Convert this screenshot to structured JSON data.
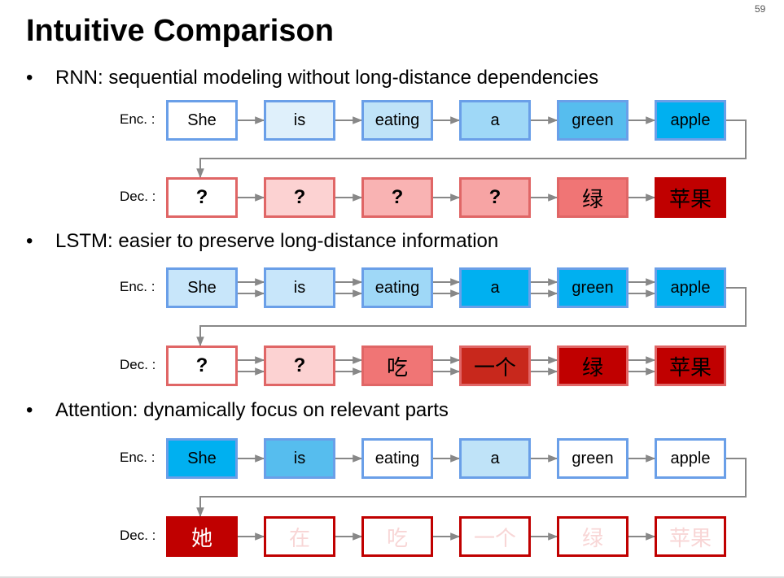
{
  "slide": {
    "page_number": "59",
    "title": "Intuitive Comparison"
  },
  "sections": [
    {
      "id": "rnn",
      "bullet": "RNN: sequential modeling without long-distance dependencies",
      "enc_label": "Enc. :",
      "dec_label": "Dec. :",
      "enc": [
        {
          "text": "She",
          "fill": "#ffffff",
          "border": "#6a9fe8"
        },
        {
          "text": "is",
          "fill": "#dff0fb",
          "border": "#6a9fe8"
        },
        {
          "text": "eating",
          "fill": "#bfe3f8",
          "border": "#6a9fe8"
        },
        {
          "text": "a",
          "fill": "#9fd8f7",
          "border": "#6a9fe8"
        },
        {
          "text": "green",
          "fill": "#56bdee",
          "border": "#6a9fe8"
        },
        {
          "text": "apple",
          "fill": "#00b0f0",
          "border": "#6a9fe8"
        }
      ],
      "dec": [
        {
          "text": "?",
          "fill": "#ffffff",
          "border": "#e06666",
          "color": "#000000",
          "kind": "q"
        },
        {
          "text": "?",
          "fill": "#fcd2d2",
          "border": "#e06666",
          "color": "#000000",
          "kind": "q"
        },
        {
          "text": "?",
          "fill": "#f9b3b3",
          "border": "#e06666",
          "color": "#000000",
          "kind": "q"
        },
        {
          "text": "?",
          "fill": "#f7a4a4",
          "border": "#e06666",
          "color": "#000000",
          "kind": "q"
        },
        {
          "text": "绿",
          "fill": "#f07575",
          "border": "#e06666",
          "color": "#000000",
          "kind": "zh"
        },
        {
          "text": "苹果",
          "fill": "#c00000",
          "border": "#c00000",
          "color": "#000000",
          "kind": "zh"
        }
      ]
    },
    {
      "id": "lstm",
      "bullet": "LSTM: easier to preserve long-distance information",
      "enc_label": "Enc. :",
      "dec_label": "Dec. :",
      "enc": [
        {
          "text": "She",
          "fill": "#c8e6fa",
          "border": "#6a9fe8"
        },
        {
          "text": "is",
          "fill": "#c8e6fa",
          "border": "#6a9fe8"
        },
        {
          "text": "eating",
          "fill": "#9fd8f7",
          "border": "#6a9fe8"
        },
        {
          "text": "a",
          "fill": "#00b0f0",
          "border": "#6a9fe8"
        },
        {
          "text": "green",
          "fill": "#00b0f0",
          "border": "#6a9fe8"
        },
        {
          "text": "apple",
          "fill": "#00b0f0",
          "border": "#6a9fe8"
        }
      ],
      "dec": [
        {
          "text": "?",
          "fill": "#ffffff",
          "border": "#e06666",
          "color": "#000000",
          "kind": "q"
        },
        {
          "text": "?",
          "fill": "#fcd2d2",
          "border": "#e06666",
          "color": "#000000",
          "kind": "q"
        },
        {
          "text": "吃",
          "fill": "#f07575",
          "border": "#e06666",
          "color": "#000000",
          "kind": "zh"
        },
        {
          "text": "一个",
          "fill": "#c8281c",
          "border": "#e06666",
          "color": "#000000",
          "kind": "zh"
        },
        {
          "text": "绿",
          "fill": "#c00000",
          "border": "#e06666",
          "color": "#000000",
          "kind": "zh"
        },
        {
          "text": "苹果",
          "fill": "#c00000",
          "border": "#e06666",
          "color": "#000000",
          "kind": "zh"
        }
      ]
    },
    {
      "id": "attention",
      "bullet": "Attention: dynamically focus on relevant parts",
      "enc_label": "Enc. :",
      "dec_label": "Dec. :",
      "enc": [
        {
          "text": "She",
          "fill": "#00b0f0",
          "border": "#6a9fe8"
        },
        {
          "text": "is",
          "fill": "#56bdee",
          "border": "#6a9fe8"
        },
        {
          "text": "eating",
          "fill": "#ffffff",
          "border": "#6a9fe8"
        },
        {
          "text": "a",
          "fill": "#bfe3f8",
          "border": "#6a9fe8"
        },
        {
          "text": "green",
          "fill": "#ffffff",
          "border": "#6a9fe8"
        },
        {
          "text": "apple",
          "fill": "#ffffff",
          "border": "#6a9fe8"
        }
      ],
      "dec": [
        {
          "text": "她",
          "fill": "#c00000",
          "border": "#c00000",
          "color": "#ffffff",
          "kind": "zh"
        },
        {
          "text": "在",
          "fill": "#ffffff",
          "border": "#c00000",
          "color": "#f8d6d6",
          "kind": "zh"
        },
        {
          "text": "吃",
          "fill": "#ffffff",
          "border": "#c00000",
          "color": "#f8d6d6",
          "kind": "zh"
        },
        {
          "text": "一个",
          "fill": "#ffffff",
          "border": "#c00000",
          "color": "#f8d6d6",
          "kind": "zh"
        },
        {
          "text": "绿",
          "fill": "#ffffff",
          "border": "#c00000",
          "color": "#f8d6d6",
          "kind": "zh"
        },
        {
          "text": "苹果",
          "fill": "#ffffff",
          "border": "#c00000",
          "color": "#f8d6d6",
          "kind": "zh"
        }
      ]
    }
  ]
}
